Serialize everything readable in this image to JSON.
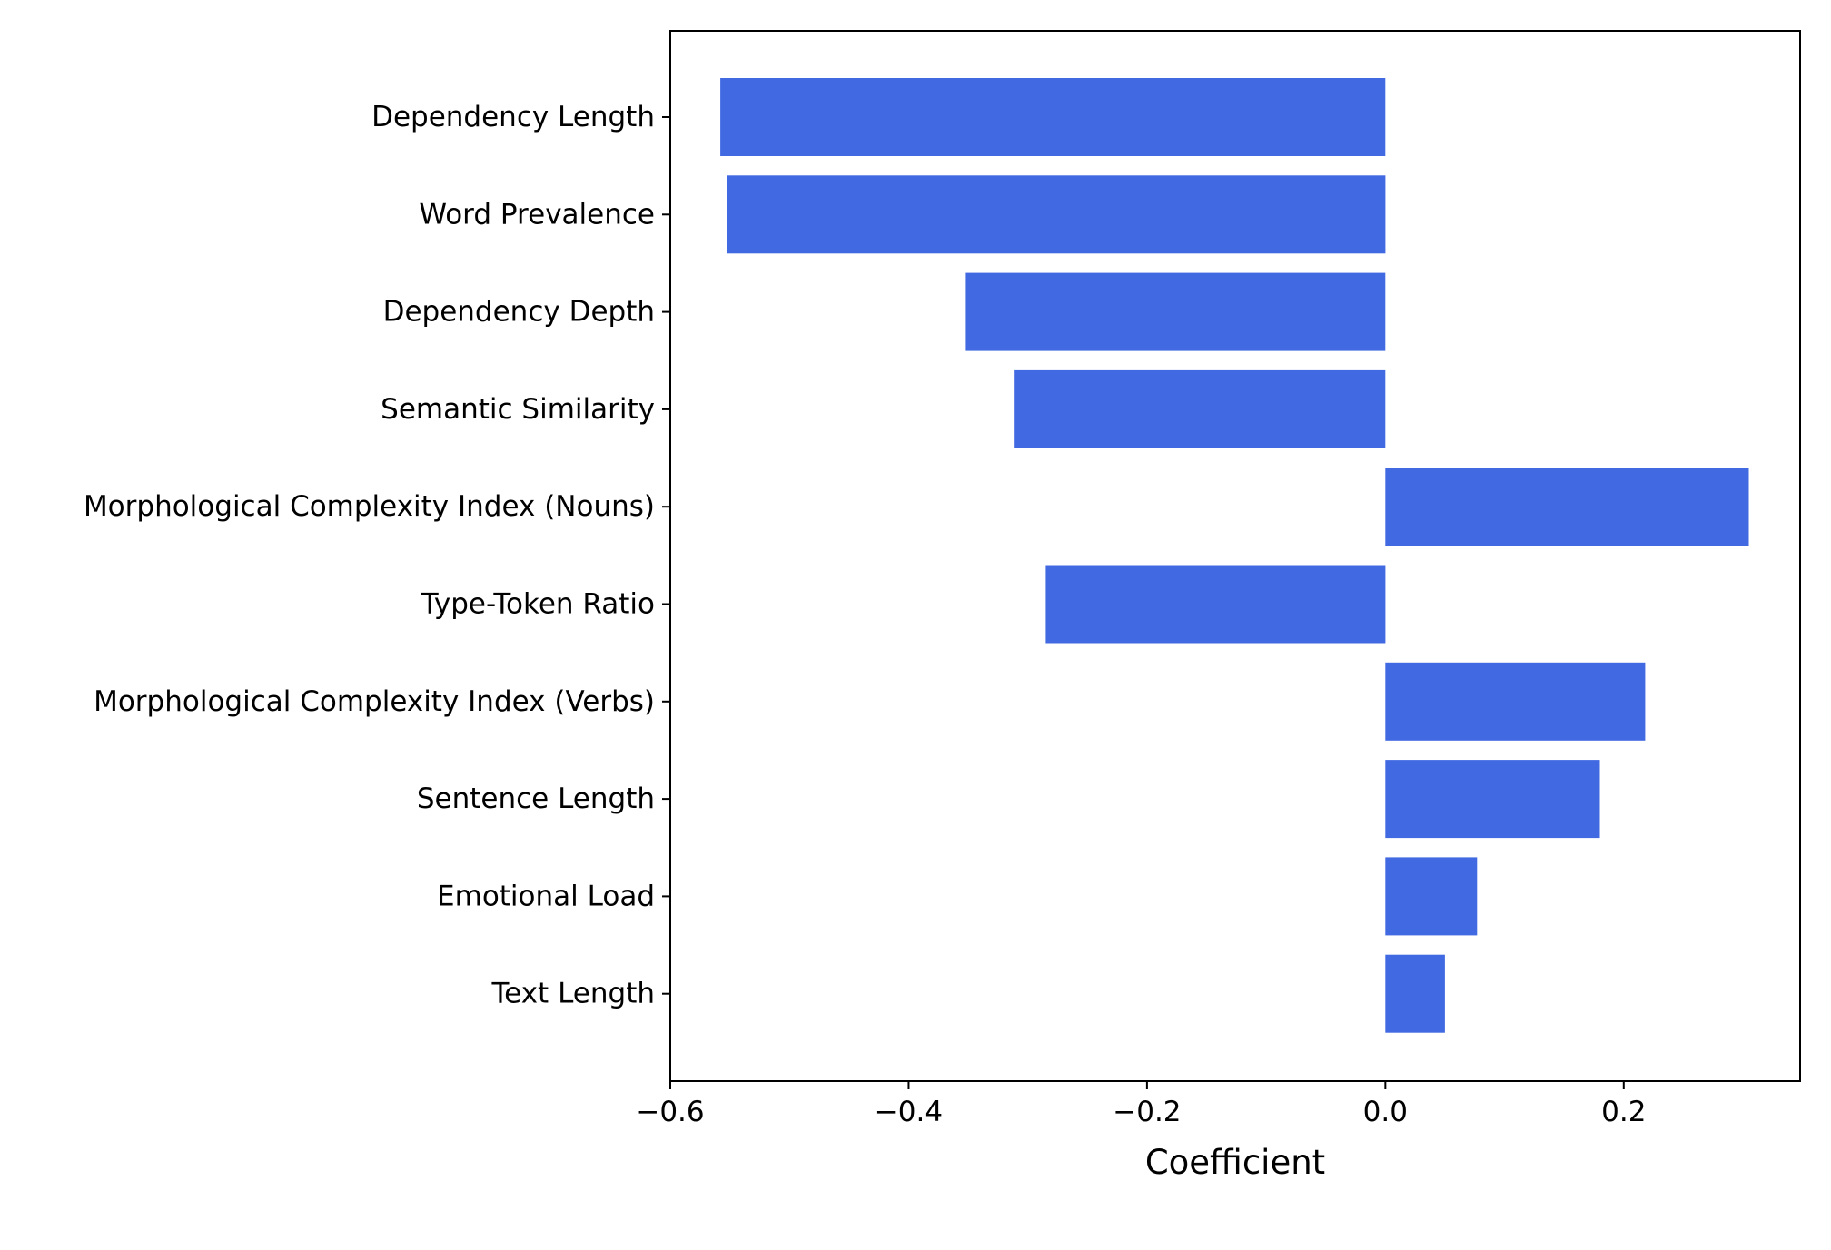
{
  "chart_data": {
    "type": "bar",
    "orientation": "horizontal",
    "title": "",
    "xlabel": "Coefficient",
    "ylabel": "",
    "categories": [
      "Dependency Length",
      "Word Prevalence",
      "Dependency Depth",
      "Semantic Similarity",
      "Morphological Complexity Index (Nouns)",
      "Type-Token Ratio",
      "Morphological Complexity Index (Verbs)",
      "Sentence Length",
      "Emotional Load",
      "Text Length"
    ],
    "values": [
      -0.558,
      -0.552,
      -0.352,
      -0.311,
      0.305,
      -0.285,
      0.218,
      0.18,
      0.077,
      0.05
    ],
    "xlim": [
      -0.6,
      0.348
    ],
    "xticks": [
      -0.6,
      -0.4,
      -0.2,
      0.0,
      0.2
    ],
    "xtick_labels": [
      "−0.6",
      "−0.4",
      "−0.2",
      "0.0",
      "0.2"
    ],
    "bar_color": "#4169e1",
    "grid": false,
    "legend": "none"
  }
}
